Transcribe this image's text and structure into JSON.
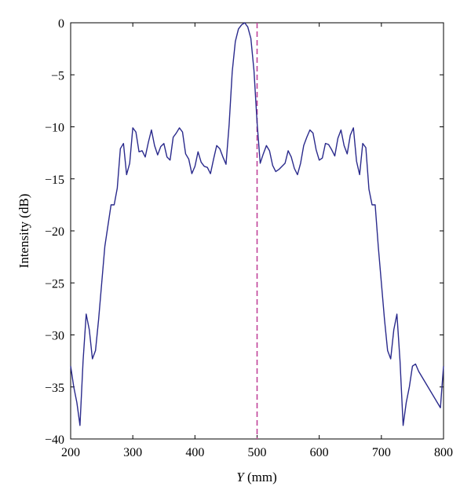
{
  "chart_data": {
    "type": "line",
    "title": "",
    "xlabel_italic": "Y",
    "xlabel_rest": " (mm)",
    "ylabel": "Intensity (dB)",
    "xlim": [
      200,
      800
    ],
    "ylim": [
      -40,
      0
    ],
    "xticks": [
      200,
      300,
      400,
      500,
      600,
      700,
      800
    ],
    "yticks": [
      0,
      -5,
      -10,
      -15,
      -20,
      -25,
      -30,
      -35,
      -40
    ],
    "grid": false,
    "colors": {
      "line": "#2a2a8c",
      "marker_line": "#c0439a"
    },
    "marker_line": {
      "x": 500,
      "style": "dashed"
    },
    "series": [
      {
        "x": [
          200,
          205,
          210,
          215,
          220,
          225,
          230,
          235,
          240,
          245,
          250,
          255,
          260,
          265,
          270,
          275,
          280,
          285,
          290,
          295,
          300,
          305,
          310,
          315,
          320,
          325,
          330,
          335,
          340,
          345,
          350,
          355,
          360,
          365,
          370,
          375,
          380,
          385,
          390,
          395,
          400,
          405,
          410,
          415,
          420,
          425,
          430,
          435,
          440,
          445,
          450,
          455,
          460,
          465,
          470,
          475,
          480,
          485,
          490,
          495,
          500,
          505,
          510,
          515,
          520,
          525,
          530,
          535,
          540,
          545,
          550,
          555,
          560,
          565,
          570,
          575,
          580,
          585,
          590,
          595,
          600,
          605,
          610,
          615,
          620,
          625,
          630,
          635,
          640,
          645,
          650,
          655,
          660,
          665,
          670,
          675,
          680,
          685,
          690,
          695,
          700,
          705,
          710,
          715,
          720,
          725,
          730,
          735,
          740,
          745,
          750,
          755,
          760,
          765,
          770,
          775,
          780,
          785,
          790,
          795,
          800
        ],
        "y": [
          -33,
          -35,
          -36.5,
          -38.7,
          -32.5,
          -28,
          -29.5,
          -32.3,
          -31.5,
          -28.5,
          -25,
          -21.5,
          -19.5,
          -17.5,
          -17.5,
          -15.9,
          -12.1,
          -11.6,
          -14.6,
          -13.5,
          -10.1,
          -10.5,
          -12.4,
          -12.3,
          -12.9,
          -11.5,
          -10.3,
          -11.8,
          -12.7,
          -11.9,
          -11.6,
          -12.9,
          -13.2,
          -11,
          -10.6,
          -10.1,
          -10.5,
          -12.6,
          -13.1,
          -14.5,
          -13.8,
          -12.4,
          -13.4,
          -13.8,
          -13.9,
          -14.5,
          -13.1,
          -11.8,
          -12.1,
          -12.9,
          -13.6,
          -9.8,
          -4.7,
          -1.8,
          -0.6,
          -0.2,
          0,
          -0.4,
          -1.5,
          -4.6,
          -9.6,
          -13.5,
          -12.6,
          -11.8,
          -12.3,
          -13.7,
          -14.3,
          -14.1,
          -13.8,
          -13.5,
          -12.3,
          -12.9,
          -14,
          -14.6,
          -13.5,
          -11.8,
          -11,
          -10.3,
          -10.6,
          -12.2,
          -13.2,
          -13,
          -11.6,
          -11.7,
          -12.2,
          -12.8,
          -11.1,
          -10.3,
          -11.8,
          -12.6,
          -10.8,
          -10.1,
          -13.3,
          -14.6,
          -11.6,
          -12,
          -16,
          -17.5,
          -17.5,
          -21.5,
          -25,
          -28.5,
          -31.5,
          -32.3,
          -29.5,
          -28,
          -32.5,
          -38.7,
          -36.5,
          -35,
          -33,
          -32.8,
          -33.5,
          -34,
          -34.5,
          -35,
          -35.5,
          -36,
          -36.5,
          -37,
          -33
        ]
      }
    ]
  }
}
